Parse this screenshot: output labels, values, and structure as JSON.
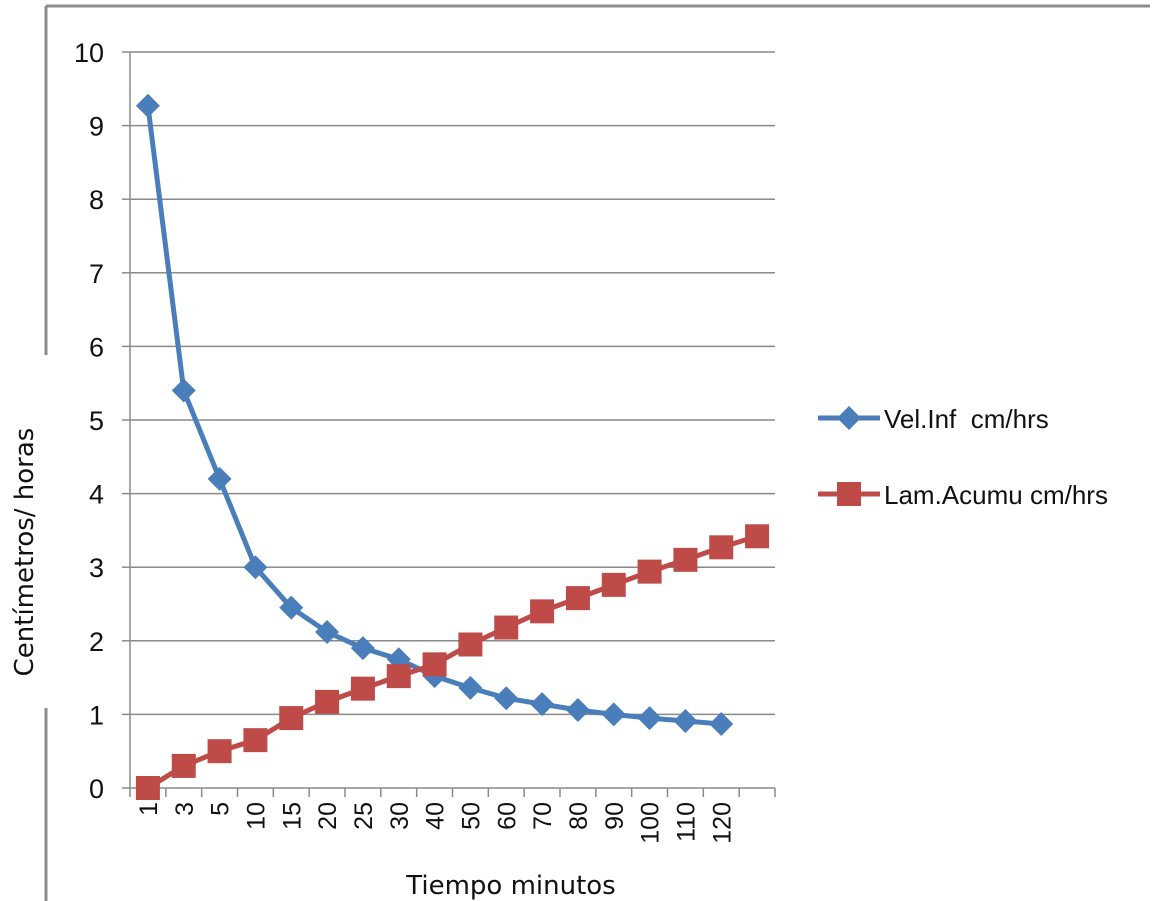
{
  "chart_data": {
    "type": "line",
    "title": "",
    "xlabel": "Tiempo minutos",
    "ylabel": "Centímetros/  horas",
    "ylim": [
      0,
      10
    ],
    "yticks": [
      "0",
      "1",
      "2",
      "3",
      "4",
      "5",
      "6",
      "7",
      "8",
      "9",
      "10"
    ],
    "categories": [
      "1",
      "3",
      "5",
      "10",
      "15",
      "20",
      "25",
      "30",
      "40",
      "50",
      "60",
      "70",
      "80",
      "90",
      "100",
      "110",
      "120",
      ""
    ],
    "grid": true,
    "legend_position": "right",
    "series": [
      {
        "name": "Vel.Inf  cm/hrs",
        "color": "#4a7ebb",
        "marker": "diamond",
        "values": [
          9.27,
          5.4,
          4.2,
          3.0,
          2.45,
          2.12,
          1.9,
          1.75,
          1.52,
          1.36,
          1.22,
          1.14,
          1.06,
          1.0,
          0.95,
          0.91,
          0.87,
          null
        ]
      },
      {
        "name": "Lam.Acumu cm/hrs",
        "color": "#be4b48",
        "marker": "square",
        "values": [
          0.0,
          0.3,
          0.5,
          0.65,
          0.95,
          1.17,
          1.35,
          1.52,
          1.68,
          1.95,
          2.18,
          2.4,
          2.58,
          2.76,
          2.94,
          3.1,
          3.27,
          3.42
        ]
      }
    ]
  }
}
